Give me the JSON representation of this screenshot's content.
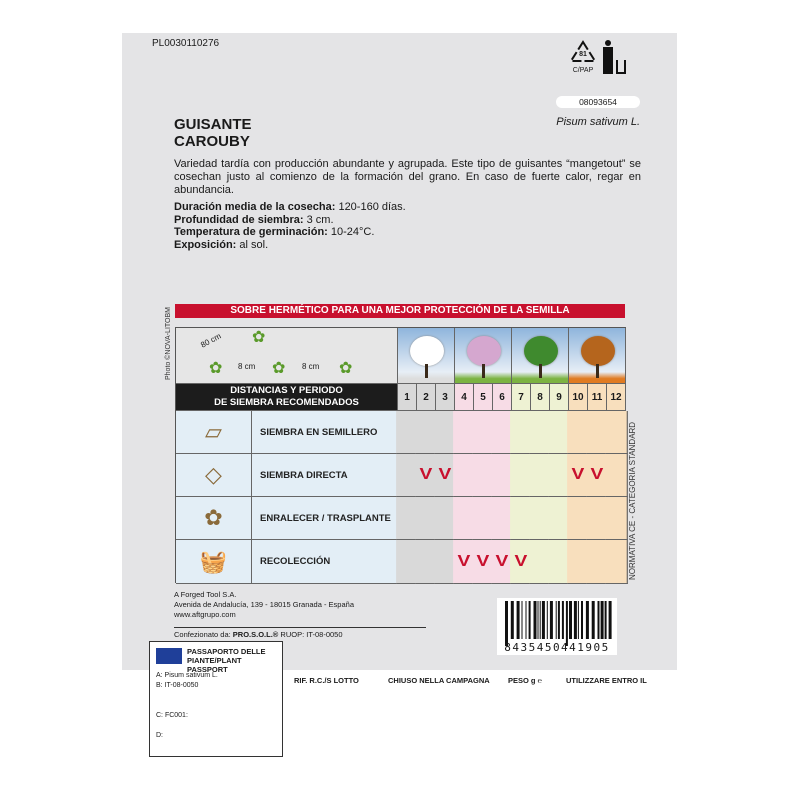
{
  "header": {
    "product_code": "PL0030110276",
    "recycle_code": "81",
    "recycle_material": "C/PAP",
    "lot_code": "08093654"
  },
  "product": {
    "name_line1": "GUISANTE",
    "name_line2": "CAROUBY",
    "latin": "Pisum sativum L.",
    "description": "Variedad tardía con producción abundante y agrupada. Este tipo de guisantes “mangetout” se cosechan justo al comienzo de la formación del grano. En caso de fuerte calor, regar en abundancia.",
    "facts": [
      {
        "label": "Duración media de la cosecha:",
        "value": " 120-160 días."
      },
      {
        "label": "Profundidad de siembra:",
        "value": " 3 cm."
      },
      {
        "label": "Temperatura de germinación:",
        "value": " 10-24°C."
      },
      {
        "label": "Exposición:",
        "value": " al sol."
      }
    ]
  },
  "calendar": {
    "banner": "SOBRE HERMÉTICO PARA UNA MEJOR PROTECCIÓN DE LA SEMILLA",
    "spacing": {
      "row": "80 cm",
      "plant1": "8 cm",
      "plant2": "8 cm"
    },
    "header_line1": "DISTANCIAS Y PERIODO",
    "header_line2": "DE SIEMBRA RECOMENDADOS",
    "months": [
      "1",
      "2",
      "3",
      "4",
      "5",
      "6",
      "7",
      "8",
      "9",
      "10",
      "11",
      "12"
    ],
    "season_colors": [
      "#d9d9d9",
      "#f7dce6",
      "#eef2d3",
      "#f8dfbd"
    ],
    "check_color": "#c8102e",
    "rows": [
      {
        "label": "SIEMBRA EN SEMILLERO",
        "icon": "seed-tray-icon",
        "months": []
      },
      {
        "label": "SIEMBRA DIRECTA",
        "icon": "direct-sowing-icon",
        "months": [
          2,
          3,
          10,
          11
        ]
      },
      {
        "label": "ENRALECER / TRASPLANTE",
        "icon": "transplant-icon",
        "months": []
      },
      {
        "label": "RECOLECCIÓN",
        "icon": "harvest-basket-icon",
        "months": [
          4,
          5,
          6,
          7
        ]
      }
    ],
    "photo_credit": "Photo ©NOVA-LITOBM",
    "norm": "NORMATIVA CE - CATEGORIA STANDARD"
  },
  "company": {
    "name": "A Forged Tool S.A.",
    "address": "Avenida de Andalucía, 139 - 18015 Granada - España",
    "web": "www.aftgrupo.com",
    "packed_label": "Confezionato da: ",
    "packer": "PRO.S.O.L.®",
    "ruop": " RUOP: IT-08-0050"
  },
  "barcode": "8435450441905",
  "passport": {
    "title1": "PASSAPORTO DELLE",
    "title2": "PIANTE/PLANT PASSPORT",
    "a": "A: Pisum sativum L.",
    "b": "B: IT-08-0050",
    "c": "C: FC001:",
    "d": "D:"
  },
  "footer": {
    "lot": "RIF. R.C./S LOTTO",
    "closed": "CHIUSO NELLA CAMPAGNA",
    "weight": "PESO g ℮",
    "use_by": "UTILIZZARE ENTRO IL"
  }
}
